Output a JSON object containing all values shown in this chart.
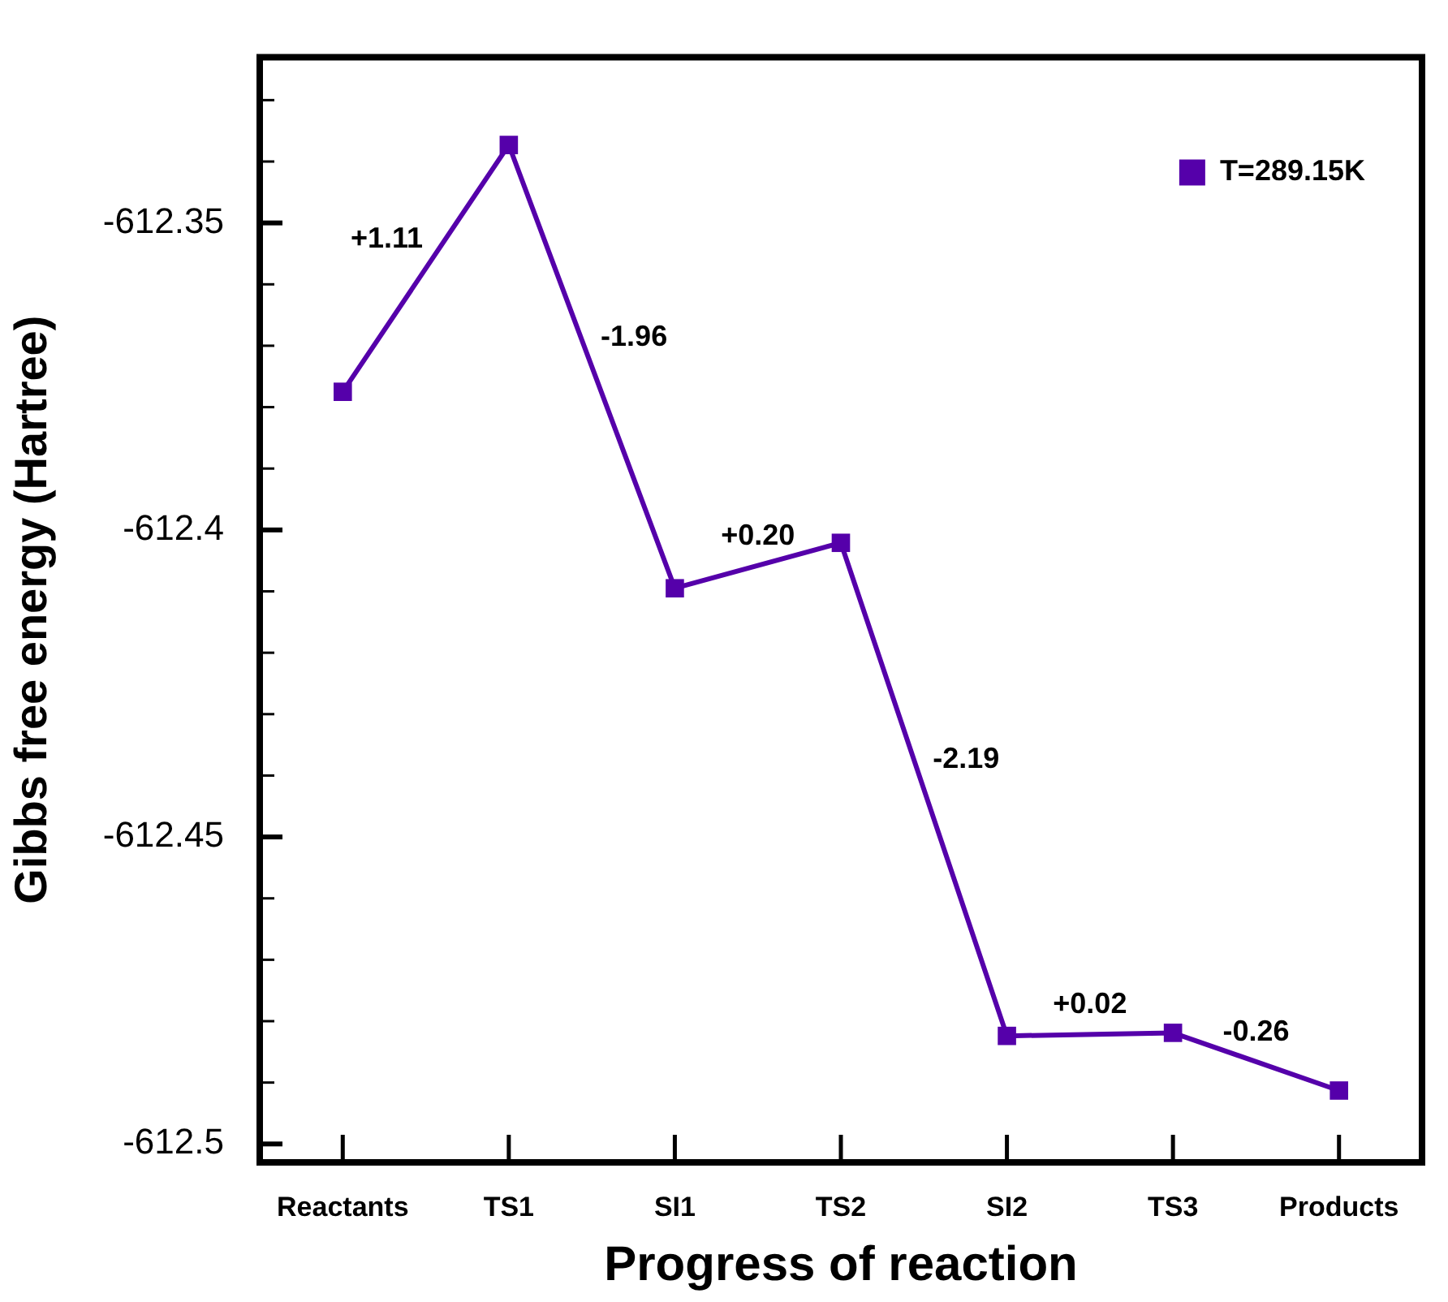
{
  "chart_data": {
    "type": "line",
    "xlabel": "Progress of reaction",
    "ylabel": "Gibbs free energy (Hartree)",
    "categories": [
      "Reactants",
      "TS1",
      "SI1",
      "TS2",
      "SI2",
      "TS3",
      "Products"
    ],
    "series": [
      {
        "name": "T=289.15K",
        "color": "#5500aa",
        "values": [
          -612.3775,
          -612.3373,
          -612.4095,
          -612.4021,
          -612.4824,
          -612.4819,
          -612.4913
        ]
      }
    ],
    "ylim": [
      -612.503,
      -612.323
    ],
    "yticks": [
      -612.5,
      {
        "value": -612.49,
        "label": null
      },
      {
        "value": -612.48,
        "label": null
      },
      {
        "value": -612.47,
        "label": null
      },
      {
        "value": -612.46,
        "label": null
      },
      -612.45,
      {
        "value": -612.44,
        "label": null
      },
      {
        "value": -612.43,
        "label": null
      },
      {
        "value": -612.42,
        "label": null
      },
      {
        "value": -612.41,
        "label": null
      },
      -612.4,
      {
        "value": -612.39,
        "label": null
      },
      {
        "value": -612.38,
        "label": null
      },
      {
        "value": -612.37,
        "label": null
      },
      {
        "value": -612.36,
        "label": null
      },
      -612.35,
      {
        "value": -612.34,
        "label": null
      },
      {
        "value": -612.33,
        "label": null
      }
    ],
    "annotations": [
      "+1.11",
      "-1.96",
      "+0.20",
      "-2.19",
      "+0.02",
      "-0.26"
    ],
    "legend": "top right",
    "marker": "square",
    "line_style": "solid",
    "grid": false
  }
}
